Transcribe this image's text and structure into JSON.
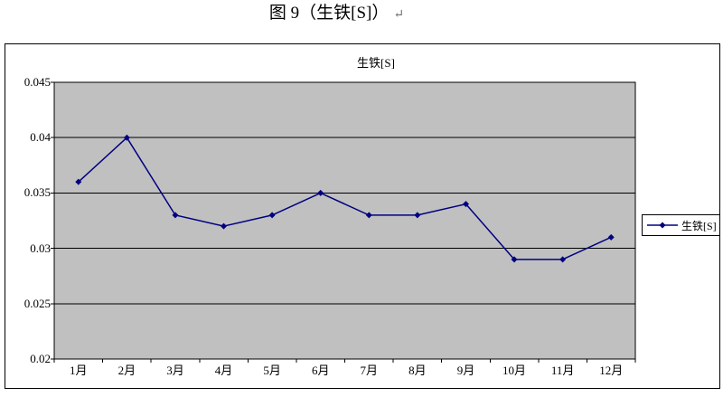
{
  "document": {
    "title": "图 9（生铁[S]）",
    "paragraph_mark": "↵"
  },
  "chart": {
    "title": "生铁[S]",
    "legend": {
      "label": "生铁[S]"
    },
    "colors": {
      "series": "#000080",
      "plot_bg": "#c0c0c0",
      "grid": "#000000",
      "frame_border": "#000000"
    }
  },
  "chart_data": {
    "type": "line",
    "title": "生铁[S]",
    "categories": [
      "1月",
      "2月",
      "3月",
      "4月",
      "5月",
      "6月",
      "7月",
      "8月",
      "9月",
      "10月",
      "11月",
      "12月"
    ],
    "series": [
      {
        "name": "生铁[S]",
        "values": [
          0.036,
          0.04,
          0.033,
          0.032,
          0.033,
          0.035,
          0.033,
          0.033,
          0.034,
          0.029,
          0.029,
          0.031
        ]
      }
    ],
    "xlabel": "",
    "ylabel": "",
    "ylim": [
      0.02,
      0.045
    ],
    "ytick_step": 0.005,
    "ytick_labels": [
      "0.045",
      "0.04",
      "0.035",
      "0.03",
      "0.025",
      "0.02"
    ],
    "grid": true,
    "legend_position": "right",
    "marker": "diamond",
    "plot_area_bg": "#c0c0c0"
  }
}
